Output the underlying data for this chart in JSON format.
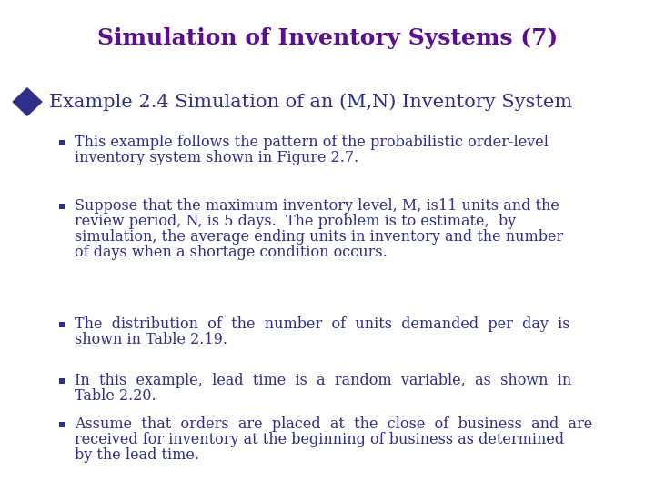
{
  "title": "Simulation of Inventory Systems (7)",
  "title_color": "#5B0E91",
  "title_fontsize": 18,
  "subtitle": "Example 2.4 Simulation of an (M,N) Inventory System",
  "subtitle_color": "#2E2E8B",
  "subtitle_fontsize": 15,
  "bullet_color": "#2E2E8B",
  "bullet_fontsize": 11.5,
  "background_color": "#FFFFFF",
  "diamond_color": "#2E2E8B",
  "bullets": [
    "This example follows the pattern of the probabilistic order-level inventory system shown in Figure 2.7.",
    "Suppose that the maximum inventory level, M, is11 units and the review period, N, is 5 days.  The problem is to estimate,  by simulation, the average ending units in inventory and the number of days when a shortage condition occurs.",
    "The  distribution  of  the  number  of  units  demanded  per  day  is shown in Table 2.19.",
    "In  this  example,  lead  time  is  a  random  variable,  as  shown  in Table 2.20.",
    "Assume  that  orders  are  placed  at  the  close  of  business  and  are received for inventory at the beginning of business as determined by the lead time."
  ]
}
